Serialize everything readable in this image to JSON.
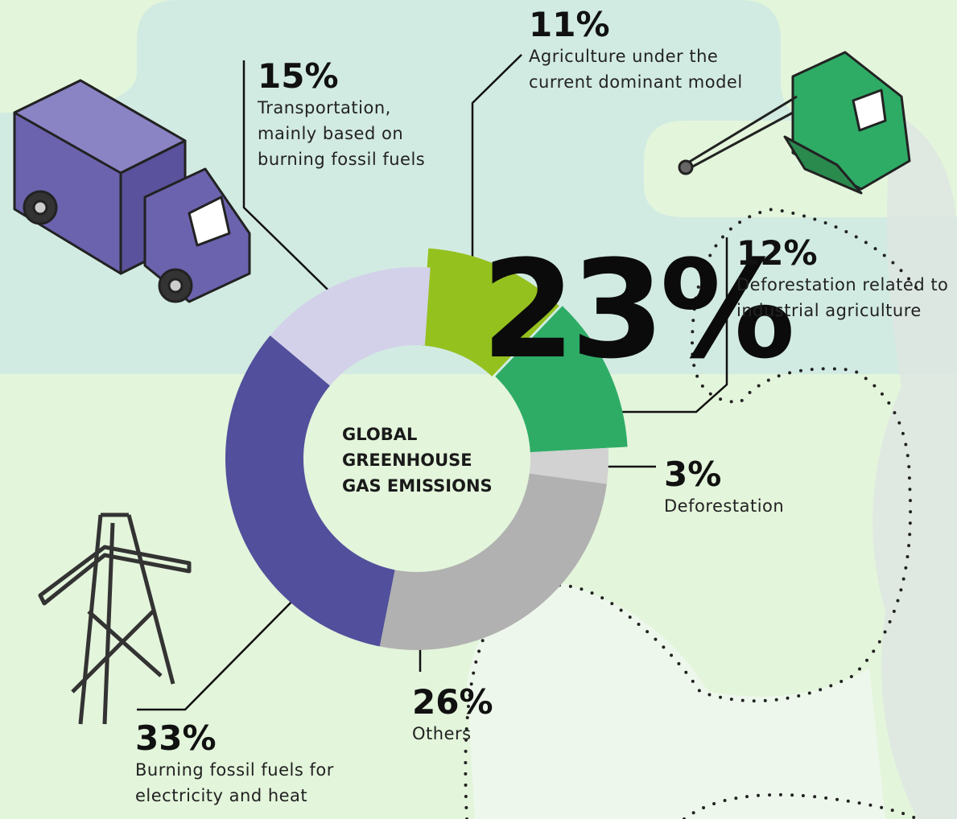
{
  "chart_data": {
    "type": "donut",
    "center_label": "GLOBAL GREENHOUSE GAS EMISSIONS",
    "highlight_label": "23%",
    "categories": [
      "Agriculture under the current dominant model",
      "Deforestation related to industrial agriculture",
      "Deforestation",
      "Others",
      "Burning fossil fuels for electricity and heat",
      "Transportation, mainly based on burning fossil fuels"
    ],
    "values": [
      11,
      12,
      3,
      26,
      33,
      15
    ],
    "value_labels": [
      "11%",
      "12%",
      "3%",
      "26%",
      "33%",
      "15%"
    ],
    "colors": [
      "#95c11f",
      "#2eac66",
      "#d2d2d2",
      "#b1b1b1",
      "#524f9c",
      "#d3d1ea"
    ]
  }
}
